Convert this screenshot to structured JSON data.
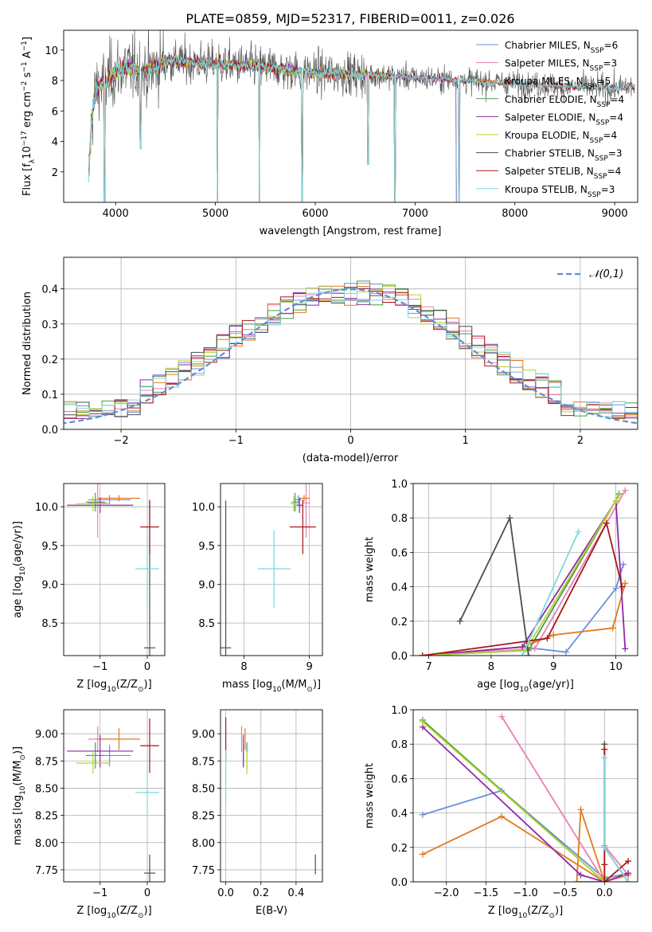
{
  "title": "PLATE=0859, MJD=52317, FIBERID=0011, z=0.026",
  "colors": {
    "Chabrier MILES": "#6a8fdd",
    "Salpeter MILES": "#e97fb6",
    "Kroupa MILES": "#e07a1f",
    "Chabrier ELODIE": "#4a9b4a",
    "Salpeter ELODIE": "#8e2aa8",
    "Kroupa ELODIE": "#b8d42e",
    "Chabrier STELIB": "#4d4d4d",
    "Salpeter STELIB": "#a8161b",
    "Kroupa STELIB": "#7fd8dc",
    "normal": "#5b8fd6"
  },
  "chart_data": [
    {
      "type": "line",
      "name": "spectrum",
      "xlabel": "wavelength [Angstrom, rest frame]",
      "ylabel": "Flux [f_λ10^-17 erg cm^-2 s^-1 A^-1]",
      "xlim": [
        3480,
        9230
      ],
      "ylim": [
        0,
        11.3
      ],
      "xticks": [
        4000,
        5000,
        6000,
        7000,
        8000,
        9000
      ],
      "yticks": [
        2,
        4,
        6,
        8,
        10
      ],
      "legend_position": "top-right",
      "legend": [
        {
          "label": "Chabrier MILES, N_SSP=6",
          "model": "Chabrier MILES"
        },
        {
          "label": "Salpeter MILES, N_SSP=3",
          "model": "Salpeter MILES"
        },
        {
          "label": "Kroupa MILES, N_SSP=5",
          "model": "Kroupa MILES"
        },
        {
          "label": "Chabrier ELODIE, N_SSP=4",
          "model": "Chabrier ELODIE"
        },
        {
          "label": "Salpeter ELODIE, N_SSP=4",
          "model": "Salpeter ELODIE"
        },
        {
          "label": "Kroupa ELODIE, N_SSP=4",
          "model": "Kroupa ELODIE"
        },
        {
          "label": "Chabrier STELIB, N_SSP=3",
          "model": "Chabrier STELIB"
        },
        {
          "label": "Salpeter STELIB, N_SSP=4",
          "model": "Salpeter STELIB"
        },
        {
          "label": "Kroupa STELIB, N_SSP=3",
          "model": "Kroupa STELIB"
        }
      ],
      "continuum": [
        [
          3730,
          4.0
        ],
        [
          3800,
          7.4
        ],
        [
          3900,
          8.0
        ],
        [
          4000,
          8.6
        ],
        [
          4100,
          8.9
        ],
        [
          4300,
          8.5
        ],
        [
          4500,
          9.3
        ],
        [
          5000,
          9.1
        ],
        [
          5500,
          8.9
        ],
        [
          6000,
          8.5
        ],
        [
          6500,
          8.4
        ],
        [
          7000,
          8.2
        ],
        [
          7500,
          8.0
        ],
        [
          8000,
          7.8
        ],
        [
          8500,
          7.6
        ],
        [
          9000,
          7.5
        ],
        [
          9200,
          7.6
        ]
      ],
      "model_range": {
        "Chabrier MILES": [
          3730,
          7420
        ],
        "Salpeter MILES": [
          3730,
          7420
        ],
        "Kroupa MILES": [
          3730,
          7420
        ],
        "Chabrier ELODIE": [
          3730,
          6800
        ],
        "Salpeter ELODIE": [
          3730,
          6800
        ],
        "Kroupa ELODIE": [
          3730,
          6800
        ],
        "Chabrier STELIB": [
          3730,
          9200
        ],
        "Salpeter STELIB": [
          3730,
          9200
        ],
        "Kroupa STELIB": [
          3730,
          9200
        ]
      },
      "dips": [
        [
          3890,
          0
        ],
        [
          4250,
          3.5
        ],
        [
          5020,
          0
        ],
        [
          5440,
          0
        ],
        [
          5870,
          0
        ],
        [
          6530,
          2.5
        ],
        [
          6800,
          0
        ],
        [
          7440,
          0
        ]
      ]
    },
    {
      "type": "histogram",
      "name": "residuals",
      "xlabel": "(data-model)/error",
      "ylabel": "Normed distribution",
      "xlim": [
        -2.5,
        2.5
      ],
      "ylim": [
        0,
        0.49
      ],
      "xticks": [
        -2,
        -1,
        0,
        1,
        2
      ],
      "yticks": [
        0.0,
        0.1,
        0.2,
        0.3,
        0.4
      ],
      "bins": [
        -2.5,
        2.5,
        45
      ],
      "reference_label": "𝒩(0,1)",
      "legend_position": "top-right",
      "grid": true
    },
    {
      "type": "errorbar",
      "name": "age_vs_Z",
      "xlabel": "Z [log10(Z/Z_sun)]",
      "ylabel": "age [log10(age/yr)]",
      "xlim": [
        -1.77,
        0.37
      ],
      "ylim": [
        8.08,
        10.3
      ],
      "xticks": [
        -1,
        0
      ],
      "yticks": [
        8.5,
        9.0,
        9.5,
        10.0
      ],
      "grid": true,
      "points": [
        {
          "model": "Chabrier MILES",
          "x": -0.8,
          "y": 10.09,
          "xerr": 0.45,
          "yerr": 0.06
        },
        {
          "model": "Salpeter MILES",
          "x": -1.05,
          "y": 10.05,
          "xerr": 0.2,
          "yerr": 0.45
        },
        {
          "model": "Kroupa MILES",
          "x": -0.6,
          "y": 10.11,
          "xerr": 0.45,
          "yerr": 0.04
        },
        {
          "model": "Chabrier ELODIE",
          "x": -1.1,
          "y": 10.06,
          "xerr": 0.2,
          "yerr": 0.12
        },
        {
          "model": "Salpeter ELODIE",
          "x": -1.0,
          "y": 10.02,
          "xerr": 0.7,
          "yerr": 0.1
        },
        {
          "model": "Kroupa ELODIE",
          "x": -1.15,
          "y": 10.04,
          "xerr": 0.35,
          "yerr": 0.1
        },
        {
          "model": "Chabrier STELIB",
          "x": 0.05,
          "y": 8.18,
          "xerr": 0.12,
          "yerr": 1.9
        },
        {
          "model": "Salpeter STELIB",
          "x": 0.05,
          "y": 9.74,
          "xerr": 0.2,
          "yerr": 0.35
        },
        {
          "model": "Kroupa STELIB",
          "x": 0.0,
          "y": 9.2,
          "xerr": 0.25,
          "yerr": 0.5
        }
      ]
    },
    {
      "type": "errorbar",
      "name": "age_vs_mass",
      "xlabel": "mass [log10(M/M_sun)]",
      "ylabel": "",
      "xlim": [
        7.64,
        9.2
      ],
      "ylim": [
        8.08,
        10.3
      ],
      "xticks": [
        8,
        9
      ],
      "yticks": [
        8.5,
        9.0,
        9.5,
        10.0
      ],
      "grid": true,
      "points": [
        {
          "model": "Chabrier MILES",
          "x": 8.83,
          "y": 10.09,
          "xerr": 0.05,
          "yerr": 0.06
        },
        {
          "model": "Salpeter MILES",
          "x": 8.95,
          "y": 10.05,
          "xerr": 0.06,
          "yerr": 0.45
        },
        {
          "model": "Kroupa MILES",
          "x": 8.92,
          "y": 10.11,
          "xerr": 0.08,
          "yerr": 0.04
        },
        {
          "model": "Chabrier ELODIE",
          "x": 8.78,
          "y": 10.06,
          "xerr": 0.05,
          "yerr": 0.12
        },
        {
          "model": "Salpeter ELODIE",
          "x": 8.85,
          "y": 10.02,
          "xerr": 0.05,
          "yerr": 0.1
        },
        {
          "model": "Kroupa ELODIE",
          "x": 8.76,
          "y": 10.04,
          "xerr": 0.05,
          "yerr": 0.1
        },
        {
          "model": "Chabrier STELIB",
          "x": 7.72,
          "y": 8.18,
          "xerr": 0.08,
          "yerr": 1.9
        },
        {
          "model": "Salpeter STELIB",
          "x": 8.9,
          "y": 9.74,
          "xerr": 0.2,
          "yerr": 0.35
        },
        {
          "model": "Kroupa STELIB",
          "x": 8.46,
          "y": 9.2,
          "xerr": 0.25,
          "yerr": 0.5
        }
      ]
    },
    {
      "type": "line",
      "name": "weight_vs_age",
      "xlabel": "age [log10(age/yr)]",
      "ylabel": "mass weight",
      "xlim": [
        6.75,
        10.35
      ],
      "ylim": [
        0,
        1
      ],
      "xticks": [
        7,
        8,
        9,
        10
      ],
      "yticks": [
        0.0,
        0.2,
        0.4,
        0.6,
        0.8,
        1.0
      ],
      "grid": true,
      "series": [
        {
          "model": "Chabrier MILES",
          "x": [
            6.9,
            8.5,
            9.2,
            10.0,
            10.12
          ],
          "y": [
            0.0,
            0.05,
            0.02,
            0.39,
            0.53
          ]
        },
        {
          "model": "Salpeter MILES",
          "x": [
            6.9,
            8.7,
            10.15
          ],
          "y": [
            0.0,
            0.04,
            0.96
          ]
        },
        {
          "model": "Kroupa MILES",
          "x": [
            6.9,
            8.5,
            9.0,
            9.95,
            10.15
          ],
          "y": [
            0.0,
            0.05,
            0.12,
            0.16,
            0.42
          ]
        },
        {
          "model": "Chabrier ELODIE",
          "x": [
            6.9,
            8.6,
            10.0,
            10.05
          ],
          "y": [
            0.0,
            0.03,
            0.9,
            0.94
          ]
        },
        {
          "model": "Salpeter ELODIE",
          "x": [
            6.9,
            8.5,
            10.0,
            10.15
          ],
          "y": [
            0.0,
            0.05,
            0.9,
            0.04
          ]
        },
        {
          "model": "Kroupa ELODIE",
          "x": [
            6.9,
            8.55,
            10.0,
            10.05
          ],
          "y": [
            0.0,
            0.03,
            0.9,
            0.93
          ]
        },
        {
          "model": "Chabrier STELIB",
          "x": [
            7.5,
            8.3,
            8.6
          ],
          "y": [
            0.2,
            0.8,
            0.0
          ]
        },
        {
          "model": "Salpeter STELIB",
          "x": [
            6.9,
            8.9,
            9.85,
            10.1
          ],
          "y": [
            0.0,
            0.1,
            0.77,
            0.4
          ]
        },
        {
          "model": "Kroupa STELIB",
          "x": [
            8.5,
            8.75,
            9.4
          ],
          "y": [
            0.0,
            0.2,
            0.72
          ]
        }
      ]
    },
    {
      "type": "errorbar",
      "name": "mass_vs_Z",
      "xlabel": "Z [log10(Z/Z_sun)]",
      "ylabel": "mass [log10(M/M_sun)]",
      "xlim": [
        -1.77,
        0.37
      ],
      "ylim": [
        7.64,
        9.22
      ],
      "xticks": [
        -1,
        0
      ],
      "yticks": [
        7.75,
        8.0,
        8.25,
        8.5,
        8.75,
        9.0
      ],
      "grid": true,
      "points": [
        {
          "model": "Chabrier MILES",
          "x": -0.8,
          "y": 8.8,
          "xerr": 0.45,
          "yerr": 0.1
        },
        {
          "model": "Salpeter MILES",
          "x": -1.05,
          "y": 8.95,
          "xerr": 0.2,
          "yerr": 0.12
        },
        {
          "model": "Kroupa MILES",
          "x": -0.6,
          "y": 8.95,
          "xerr": 0.45,
          "yerr": 0.1
        },
        {
          "model": "Chabrier ELODIE",
          "x": -1.1,
          "y": 8.8,
          "xerr": 0.2,
          "yerr": 0.12
        },
        {
          "model": "Salpeter ELODIE",
          "x": -1.0,
          "y": 8.84,
          "xerr": 0.7,
          "yerr": 0.15
        },
        {
          "model": "Kroupa ELODIE",
          "x": -1.15,
          "y": 8.73,
          "xerr": 0.35,
          "yerr": 0.1
        },
        {
          "model": "Chabrier STELIB",
          "x": 0.05,
          "y": 7.72,
          "xerr": 0.12,
          "yerr": 0.17
        },
        {
          "model": "Salpeter STELIB",
          "x": 0.05,
          "y": 8.89,
          "xerr": 0.2,
          "yerr": 0.25
        },
        {
          "model": "Kroupa STELIB",
          "x": 0.0,
          "y": 8.46,
          "xerr": 0.25,
          "yerr": 0.25
        }
      ]
    },
    {
      "type": "errorbar",
      "name": "mass_vs_EBV",
      "xlabel": "E(B-V)",
      "ylabel": "",
      "xlim": [
        -0.03,
        0.55
      ],
      "ylim": [
        7.64,
        9.22
      ],
      "xticks": [
        0.0,
        0.2,
        0.4
      ],
      "yticks": [
        7.75,
        8.0,
        8.25,
        8.5,
        8.75,
        9.0
      ],
      "grid": true,
      "points": [
        {
          "model": "Chabrier MILES",
          "x": 0.1,
          "y": 8.8,
          "xerr": 0.0,
          "yerr": 0.1
        },
        {
          "model": "Salpeter MILES",
          "x": 0.09,
          "y": 8.95,
          "xerr": 0.0,
          "yerr": 0.12
        },
        {
          "model": "Kroupa MILES",
          "x": 0.11,
          "y": 8.95,
          "xerr": 0.0,
          "yerr": 0.1
        },
        {
          "model": "Chabrier ELODIE",
          "x": 0.12,
          "y": 8.8,
          "xerr": 0.0,
          "yerr": 0.12
        },
        {
          "model": "Salpeter ELODIE",
          "x": 0.1,
          "y": 8.84,
          "xerr": 0.0,
          "yerr": 0.15
        },
        {
          "model": "Kroupa ELODIE",
          "x": 0.12,
          "y": 8.73,
          "xerr": 0.0,
          "yerr": 0.1
        },
        {
          "model": "Chabrier STELIB",
          "x": 0.51,
          "y": 7.8,
          "xerr": 0.0,
          "yerr": 0.09
        },
        {
          "model": "Salpeter STELIB",
          "x": 0.0,
          "y": 8.95,
          "xerr": 0.0,
          "yerr": 0.2
        },
        {
          "model": "Kroupa STELIB",
          "x": 0.0,
          "y": 8.6,
          "xerr": 0.0,
          "yerr": 0.25
        }
      ]
    },
    {
      "type": "line",
      "name": "weight_vs_Z",
      "xlabel": "Z [log10(Z/Z_sun)]",
      "ylabel": "mass weight",
      "xlim": [
        -2.42,
        0.42
      ],
      "ylim": [
        0,
        1
      ],
      "xticks": [
        -2.0,
        -1.5,
        -1.0,
        -0.5,
        0.0
      ],
      "yticks": [
        0.0,
        0.2,
        0.4,
        0.6,
        0.8,
        1.0
      ],
      "grid": true,
      "series": [
        {
          "model": "Chabrier MILES",
          "x": [
            -2.3,
            -1.3,
            0.0,
            0.3
          ],
          "y": [
            0.39,
            0.53,
            0.02,
            0.05
          ]
        },
        {
          "model": "Salpeter MILES",
          "x": [
            -1.3,
            0.0,
            0.0,
            0.3
          ],
          "y": [
            0.96,
            0.0,
            0.21,
            0.04
          ]
        },
        {
          "model": "Kroupa MILES",
          "x": [
            -2.3,
            -1.3,
            0.0,
            -0.35,
            -0.3,
            0.0,
            0.3
          ],
          "y": [
            0.16,
            0.38,
            0.0,
            0.0,
            0.42,
            0.0,
            0.04
          ]
        },
        {
          "model": "Chabrier ELODIE",
          "x": [
            -2.3,
            0.0,
            0.0
          ],
          "y": [
            0.94,
            0.0,
            0.03
          ]
        },
        {
          "model": "Salpeter ELODIE",
          "x": [
            -2.3,
            -0.3,
            0.0,
            0.3
          ],
          "y": [
            0.9,
            0.04,
            0.0,
            0.05
          ]
        },
        {
          "model": "Kroupa ELODIE",
          "x": [
            -2.3,
            0.0,
            0.0
          ],
          "y": [
            0.93,
            0.0,
            0.03
          ]
        },
        {
          "model": "Chabrier STELIB",
          "x": [
            0.0,
            0.0,
            0.3
          ],
          "y": [
            0.8,
            0.2,
            0.0
          ]
        },
        {
          "model": "Salpeter STELIB",
          "x": [
            0.0,
            0.0,
            0.0,
            0.0,
            0.3
          ],
          "y": [
            0.77,
            0.1,
            0.0,
            0.0,
            0.12
          ]
        },
        {
          "model": "Kroupa STELIB",
          "x": [
            0.0,
            0.0,
            0.3
          ],
          "y": [
            0.72,
            0.2,
            0.0
          ]
        }
      ]
    }
  ]
}
